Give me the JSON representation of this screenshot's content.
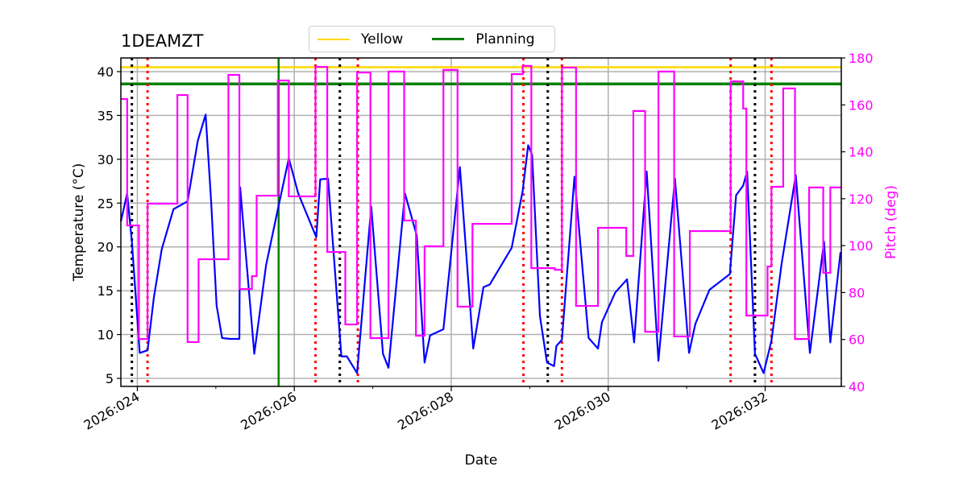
{
  "chart_data": {
    "type": "line",
    "title": "1DEAMZT",
    "xlabel": "Date",
    "ylabel": "Temperature ($^\\circ$C)",
    "ylabel_display": "Temperature (°C)",
    "y2label": "Pitch (deg)",
    "xlim": [
      23.79,
      32.97
    ],
    "ylim": [
      4.08,
      41.56
    ],
    "y2lim": [
      40,
      180
    ],
    "xticks": [
      {
        "value": 24,
        "label": "2026:024"
      },
      {
        "value": 26,
        "label": "2026:026"
      },
      {
        "value": 28,
        "label": "2026:028"
      },
      {
        "value": 30,
        "label": "2026:030"
      },
      {
        "value": 32,
        "label": "2026:032"
      }
    ],
    "xminor": [
      25,
      27,
      29,
      31
    ],
    "yticks": [
      5,
      10,
      15,
      20,
      25,
      30,
      35,
      40
    ],
    "y2ticks": [
      40,
      60,
      80,
      100,
      120,
      140,
      160,
      180
    ],
    "grid": true,
    "legend": {
      "placement": "top-center",
      "entries": [
        {
          "label": "Yellow",
          "color": "#ffd700"
        },
        {
          "label": "Planning",
          "color": "#008000"
        }
      ]
    },
    "hlines": [
      {
        "name": "Yellow",
        "value": 40.5,
        "color": "#ffd700"
      },
      {
        "name": "Planning",
        "value": 38.6,
        "color": "#008000"
      }
    ],
    "vlines": [
      {
        "kind": "black-dotted",
        "values": [
          23.93,
          26.58,
          29.23,
          31.87
        ],
        "color": "#000000"
      },
      {
        "kind": "red-dotted",
        "values": [
          24.13,
          26.27,
          26.81,
          28.92,
          29.41,
          31.56,
          32.08
        ],
        "color": "#ff0000"
      },
      {
        "kind": "green-solid",
        "values": [
          25.8
        ],
        "color": "#008000"
      }
    ],
    "series": [
      {
        "name": "Temperature",
        "axis": "left",
        "color": "#0000ff",
        "points": [
          [
            23.79,
            22.9
          ],
          [
            23.87,
            26.1
          ],
          [
            23.93,
            20.6
          ],
          [
            24.03,
            7.9
          ],
          [
            24.13,
            8.2
          ],
          [
            24.21,
            14.2
          ],
          [
            24.31,
            19.7
          ],
          [
            24.46,
            24.3
          ],
          [
            24.64,
            25.2
          ],
          [
            24.77,
            32.1
          ],
          [
            24.87,
            35.1
          ],
          [
            24.94,
            25.2
          ],
          [
            25.01,
            13.3
          ],
          [
            25.08,
            9.6
          ],
          [
            25.18,
            9.5
          ],
          [
            25.3,
            9.5
          ],
          [
            25.31,
            26.8
          ],
          [
            25.49,
            7.8
          ],
          [
            25.64,
            17.9
          ],
          [
            25.8,
            24.7
          ],
          [
            25.93,
            30.1
          ],
          [
            26.05,
            26.1
          ],
          [
            26.28,
            21.1
          ],
          [
            26.33,
            27.7
          ],
          [
            26.43,
            27.8
          ],
          [
            26.6,
            7.5
          ],
          [
            26.67,
            7.5
          ],
          [
            26.8,
            5.6
          ],
          [
            26.98,
            24.6
          ],
          [
            27.13,
            7.8
          ],
          [
            27.2,
            6.2
          ],
          [
            27.41,
            26.1
          ],
          [
            27.56,
            21.3
          ],
          [
            27.66,
            6.8
          ],
          [
            27.73,
            9.9
          ],
          [
            27.9,
            10.6
          ],
          [
            28.11,
            29.1
          ],
          [
            28.28,
            8.4
          ],
          [
            28.41,
            15.4
          ],
          [
            28.49,
            15.7
          ],
          [
            28.77,
            19.9
          ],
          [
            28.91,
            26.4
          ],
          [
            28.98,
            31.6
          ],
          [
            29.03,
            30.5
          ],
          [
            29.13,
            12.1
          ],
          [
            29.22,
            6.8
          ],
          [
            29.31,
            6.4
          ],
          [
            29.34,
            8.7
          ],
          [
            29.41,
            9.4
          ],
          [
            29.57,
            28.0
          ],
          [
            29.75,
            9.6
          ],
          [
            29.87,
            8.4
          ],
          [
            29.92,
            11.4
          ],
          [
            30.09,
            14.8
          ],
          [
            30.24,
            16.3
          ],
          [
            30.33,
            9.1
          ],
          [
            30.49,
            28.6
          ],
          [
            30.64,
            7.0
          ],
          [
            30.85,
            27.8
          ],
          [
            31.03,
            7.9
          ],
          [
            31.11,
            11.2
          ],
          [
            31.29,
            15.1
          ],
          [
            31.55,
            16.9
          ],
          [
            31.63,
            25.9
          ],
          [
            31.72,
            27.0
          ],
          [
            31.77,
            28.6
          ],
          [
            31.87,
            7.8
          ],
          [
            31.98,
            5.6
          ],
          [
            32.08,
            9.3
          ],
          [
            32.21,
            18.1
          ],
          [
            32.39,
            28.2
          ],
          [
            32.57,
            7.9
          ],
          [
            32.75,
            20.6
          ],
          [
            32.83,
            9.1
          ],
          [
            32.96,
            19.4
          ]
        ]
      },
      {
        "name": "Pitch",
        "axis": "right",
        "color": "#ff00ff",
        "step": true,
        "end": 32.97,
        "points": [
          [
            23.79,
            162.5
          ],
          [
            23.87,
            108.6
          ],
          [
            24.02,
            60.2
          ],
          [
            24.13,
            117.9
          ],
          [
            24.51,
            164.2
          ],
          [
            24.64,
            58.9
          ],
          [
            24.78,
            94.2
          ],
          [
            25.16,
            172.8
          ],
          [
            25.3,
            81.5
          ],
          [
            25.46,
            87.0
          ],
          [
            25.52,
            121.3
          ],
          [
            25.79,
            170.4
          ],
          [
            25.93,
            121.0
          ],
          [
            26.27,
            176.2
          ],
          [
            26.42,
            97.3
          ],
          [
            26.65,
            66.4
          ],
          [
            26.8,
            173.8
          ],
          [
            26.97,
            60.6
          ],
          [
            27.2,
            174.2
          ],
          [
            27.4,
            110.7
          ],
          [
            27.55,
            61.6
          ],
          [
            27.66,
            99.7
          ],
          [
            27.9,
            174.9
          ],
          [
            28.08,
            74.0
          ],
          [
            28.27,
            109.3
          ],
          [
            28.77,
            173.1
          ],
          [
            28.91,
            176.6
          ],
          [
            29.02,
            90.4
          ],
          [
            29.32,
            89.7
          ],
          [
            29.41,
            175.9
          ],
          [
            29.59,
            74.3
          ],
          [
            29.87,
            107.6
          ],
          [
            30.23,
            95.6
          ],
          [
            30.32,
            157.4
          ],
          [
            30.47,
            63.3
          ],
          [
            30.64,
            174.2
          ],
          [
            30.84,
            61.3
          ],
          [
            31.04,
            106.2
          ],
          [
            31.56,
            170.0
          ],
          [
            31.72,
            158.4
          ],
          [
            31.76,
            70.2
          ],
          [
            32.03,
            91.1
          ],
          [
            32.08,
            125.1
          ],
          [
            32.23,
            167.0
          ],
          [
            32.38,
            60.2
          ],
          [
            32.56,
            124.8
          ],
          [
            32.74,
            88.4
          ],
          [
            32.83,
            124.8
          ]
        ]
      }
    ]
  }
}
